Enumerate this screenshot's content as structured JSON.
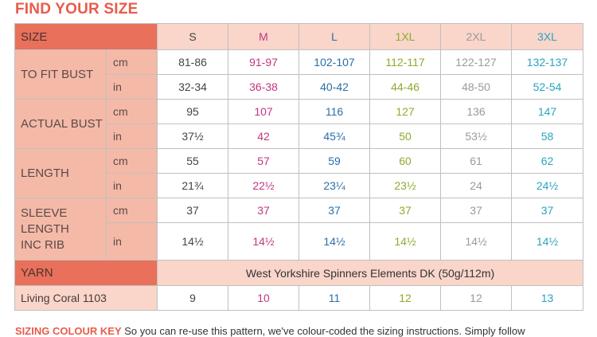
{
  "title": "FIND YOUR SIZE",
  "colors": {
    "S": "#444444",
    "M": "#c2367f",
    "L": "#2a6ea8",
    "1XL": "#8cab2c",
    "2XL": "#9a9a9a",
    "3XL": "#2aa4bf"
  },
  "header": {
    "size_label": "SIZE",
    "sizes": [
      "S",
      "M",
      "L",
      "1XL",
      "2XL",
      "3XL"
    ]
  },
  "rows": [
    {
      "label": "TO FIT BUST",
      "cm": {
        "unit": "cm",
        "values": [
          "81-86",
          "91-97",
          "102-107",
          "112-117",
          "122-127",
          "132-137"
        ]
      },
      "in": {
        "unit": "in",
        "values": [
          "32-34",
          "36-38",
          "40-42",
          "44-46",
          "48-50",
          "52-54"
        ]
      }
    },
    {
      "label": "ACTUAL BUST",
      "cm": {
        "unit": "cm",
        "values": [
          "95",
          "107",
          "116",
          "127",
          "136",
          "147"
        ]
      },
      "in": {
        "unit": "in",
        "values": [
          "37½",
          "42",
          "45¾",
          "50",
          "53½",
          "58"
        ]
      }
    },
    {
      "label": "LENGTH",
      "cm": {
        "unit": "cm",
        "values": [
          "55",
          "57",
          "59",
          "60",
          "61",
          "62"
        ]
      },
      "in": {
        "unit": "in",
        "values": [
          "21¾",
          "22½",
          "23¼",
          "23½",
          "24",
          "24½"
        ]
      }
    },
    {
      "label": "SLEEVE LENGTH INC RIB",
      "cm": {
        "unit": "cm",
        "values": [
          "37",
          "37",
          "37",
          "37",
          "37",
          "37"
        ]
      },
      "in": {
        "unit": "in",
        "values": [
          "14½",
          "14½",
          "14½",
          "14½",
          "14½",
          "14½"
        ]
      }
    }
  ],
  "yarn": {
    "label": "YARN",
    "value": "West Yorkshire Spinners Elements DK (50g/112m)"
  },
  "shade": {
    "label": "Living Coral 1103",
    "values": [
      "9",
      "10",
      "11",
      "12",
      "12",
      "13"
    ]
  },
  "footer": {
    "heading": "SIZING COLOUR KEY",
    "text": " So you can re-use this pattern, we've colour-coded the sizing instructions. Simply follow"
  }
}
